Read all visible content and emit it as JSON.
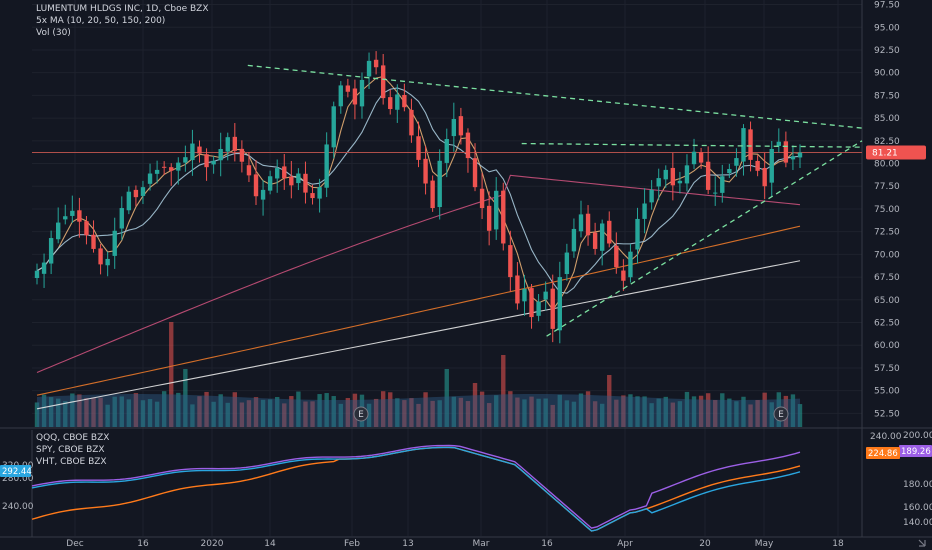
{
  "colors": {
    "background": "#131722",
    "grid": "#1e222d",
    "up": "#26a69a",
    "down": "#ef5350",
    "ma10": "#e4ad73",
    "ma20": "#a6c6d8",
    "ma50": "#c8507a",
    "ma150": "#e8782a",
    "ma200": "#e6e6e6",
    "trend": "#7be0a0",
    "qqq": "#9c5fe6",
    "spy": "#ff7a1a",
    "vht": "#2aa6e0",
    "price_line": "#b04f4a"
  },
  "legend": {
    "main": "LUMENTUM HLDGS INC, 1D, Cboe BZX",
    "ma": "5x MA (10, 20, 50, 150, 200)",
    "vol": "Vol (30)",
    "compare": [
      "QQQ, CBOE BZX",
      "SPY, CBOE BZX",
      "VHT, CBOE BZX"
    ]
  },
  "top_right_icon": "scroll-arrow-icon",
  "chart_data": [
    {
      "type": "candlestick",
      "title": "LUMENTUM HLDGS INC, 1D, Cboe BZX",
      "y_axis": {
        "side": "right",
        "ticks": [
          "97.50",
          "95.00",
          "92.50",
          "90.00",
          "87.50",
          "85.00",
          "82.50",
          "80.00",
          "77.50",
          "75.00",
          "72.50",
          "70.00",
          "67.50",
          "65.00",
          "62.50",
          "60.00",
          "57.50",
          "55.00",
          "52.50"
        ],
        "range": [
          51,
          98
        ]
      },
      "x_axis": {
        "ticks": [
          "Dec",
          "16",
          "2020",
          "14",
          "Feb",
          "13",
          "Mar",
          "16",
          "Apr",
          "20",
          "May",
          "18"
        ]
      },
      "last_price": "81.21",
      "closes": [
        68.2,
        69.1,
        71.8,
        73.5,
        74.2,
        74.8,
        73.6,
        72.1,
        70.6,
        68.9,
        69.5,
        72.6,
        75.1,
        76.9,
        76.3,
        77.4,
        78.9,
        79.3,
        79.6,
        79.2,
        80.1,
        80.7,
        82.2,
        81.1,
        79.6,
        80.3,
        81.6,
        82.9,
        81.4,
        80.2,
        78.7,
        76.4,
        77.1,
        78.6,
        79.5,
        78.4,
        77.6,
        78.9,
        76.8,
        76.2,
        77.4,
        82.1,
        86.3,
        88.6,
        87.9,
        86.5,
        89.2,
        91.3,
        90.6,
        87.2,
        86.0,
        87.6,
        86.2,
        83.1,
        80.4,
        77.8,
        75.1,
        80.3,
        82.7,
        84.9,
        83.1,
        80.6,
        77.4,
        75.1,
        72.6,
        77.0,
        71.2,
        67.5,
        64.6,
        66.2,
        63.1,
        64.8,
        65.9,
        61.8,
        67.5,
        70.2,
        72.8,
        74.4,
        72.1,
        70.6,
        73.4,
        71.2,
        68.6,
        67.1,
        70.3,
        73.9,
        75.6,
        77.1,
        78.4,
        79.3,
        77.6,
        78.1,
        79.8,
        81.3,
        80.1,
        77.1,
        76.8,
        78.6,
        79.4,
        80.6,
        83.9,
        80.4,
        79.2,
        77.5,
        81.6,
        82.4,
        80.1,
        80.8,
        81.21
      ],
      "moving_averages": [
        {
          "name": "MA 10",
          "period": 10,
          "color": "#e4ad73"
        },
        {
          "name": "MA 20",
          "period": 20,
          "color": "#a6c6d8"
        },
        {
          "name": "MA 50",
          "period": 50,
          "color": "#c8507a"
        },
        {
          "name": "MA 150",
          "period": 150,
          "color": "#e8782a"
        },
        {
          "name": "MA 200",
          "period": 200,
          "color": "#e6e6e6"
        }
      ],
      "trendlines": [
        {
          "from": [
            0.26,
            90.8
          ],
          "to": [
            1.0,
            83.9
          ],
          "style": "dashed"
        },
        {
          "from": [
            0.59,
            82.2
          ],
          "to": [
            1.0,
            81.8
          ],
          "style": "dashed"
        },
        {
          "from": [
            0.62,
            61.0
          ],
          "to": [
            1.0,
            82.5
          ],
          "style": "dashed"
        }
      ],
      "earnings_markers": [
        "E",
        "E"
      ]
    },
    {
      "type": "line",
      "title": "QQQ / SPY / VHT comparison",
      "y_axis_left": {
        "ticks": [
          "320.00",
          "280.00",
          "240.00"
        ]
      },
      "y_axis_right_inner": {
        "ticks": [
          "240.00"
        ]
      },
      "y_axis_right": {
        "ticks": [
          "200.00",
          "180.00",
          "160.00",
          "140.00"
        ]
      },
      "series": [
        {
          "name": "QQQ, CBOE BZX",
          "color": "#9c5fe6",
          "badge": "189.26"
        },
        {
          "name": "SPY, CBOE BZX",
          "color": "#ff7a1a",
          "badge": "224.86"
        },
        {
          "name": "VHT, CBOE BZX",
          "color": "#2aa6e0",
          "badge": "292.44"
        }
      ]
    }
  ]
}
